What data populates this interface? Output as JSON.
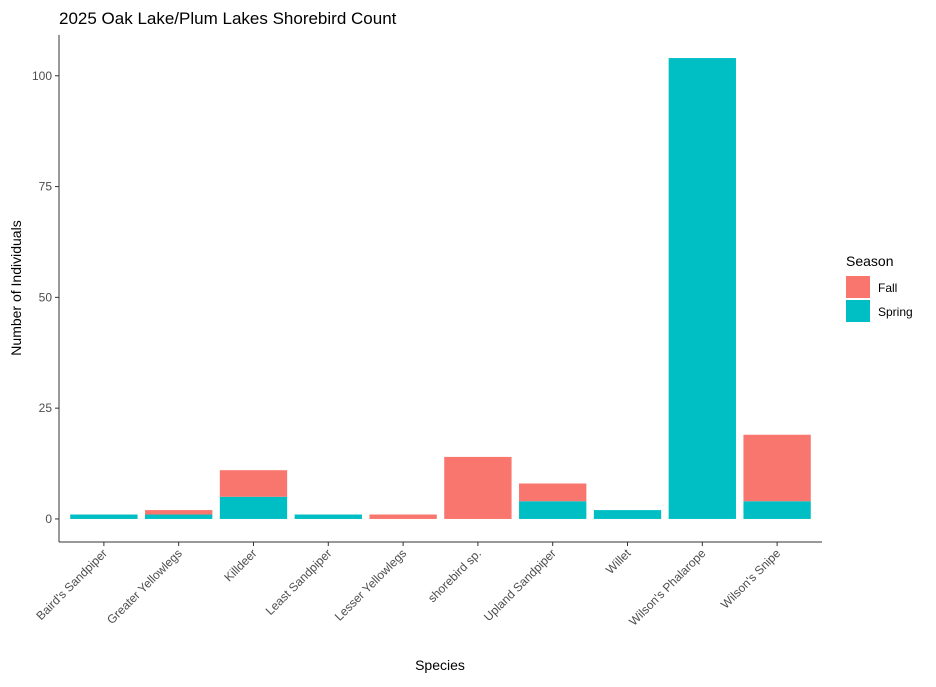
{
  "chart_data": {
    "type": "bar",
    "stacked": true,
    "title": "2025 Oak Lake/Plum Lakes Shorebird Count",
    "xlabel": "Species",
    "ylabel": "Number of Individuals",
    "ylim": [
      0,
      104
    ],
    "yticks": [
      0,
      25,
      50,
      75,
      100
    ],
    "grid": false,
    "legend": {
      "title": "Season",
      "position": "right"
    },
    "categories": [
      "Baird's Sandpiper",
      "Greater Yellowlegs",
      "Killdeer",
      "Least Sandpiper",
      "Lesser Yellowlegs",
      "shorebird sp.",
      "Upland Sandpiper",
      "Willet",
      "Wilson's Phalarope",
      "Wilson's Snipe"
    ],
    "series": [
      {
        "name": "Fall",
        "color": "#F8766D",
        "values": [
          0,
          1,
          6,
          0,
          1,
          14,
          4,
          0,
          0,
          15
        ]
      },
      {
        "name": "Spring",
        "color": "#00BFC4",
        "values": [
          1,
          1,
          5,
          1,
          0,
          0,
          4,
          2,
          104,
          4
        ]
      }
    ]
  }
}
